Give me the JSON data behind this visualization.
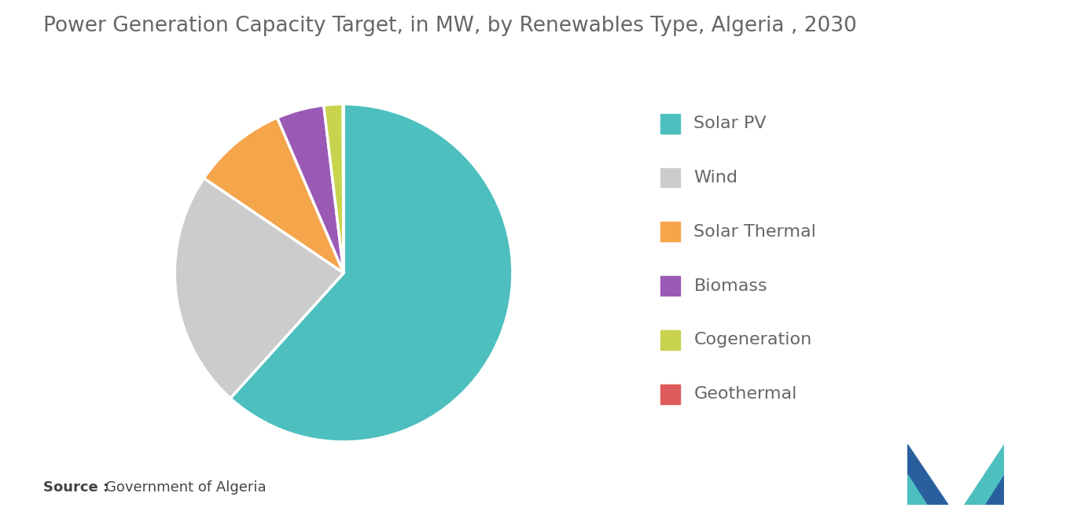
{
  "title": "Power Generation Capacity Target, in MW, by Renewables Type, Algeria , 2030",
  "labels": [
    "Solar PV",
    "Wind",
    "Solar Thermal",
    "Biomass",
    "Cogeneration",
    "Geothermal"
  ],
  "values": [
    13575,
    5010,
    2000,
    1000,
    400,
    15
  ],
  "colors": [
    "#4DBFBF",
    "#CCCCCC",
    "#F5A54A",
    "#9B59B6",
    "#C8D44E",
    "#E05C5C"
  ],
  "legend_labels": [
    "Solar PV",
    "Wind",
    "Solar Thermal",
    "Biomass",
    "Cogeneration",
    "Geothermal"
  ],
  "source_bold": "Source :",
  "source_text": "Government of Algeria",
  "background_color": "#FFFFFF",
  "title_fontsize": 19,
  "title_color": "#666666",
  "legend_fontsize": 16,
  "legend_color": "#666666",
  "source_fontsize": 13
}
